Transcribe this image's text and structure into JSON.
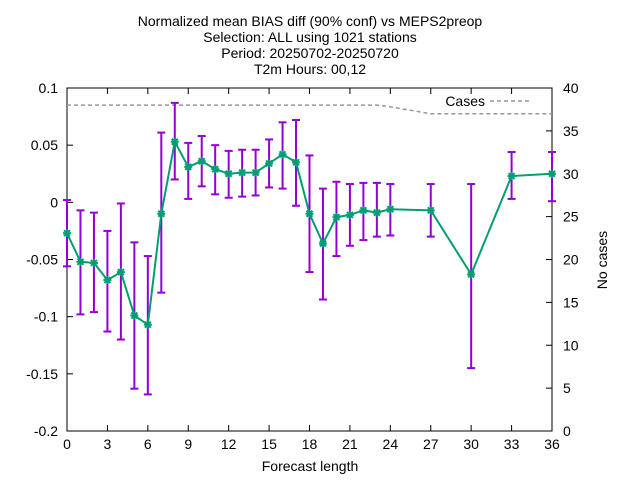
{
  "chart_data": {
    "type": "line",
    "title_lines": [
      "Normalized mean BIAS diff (90% conf) vs MEPS2preop",
      "Selection: ALL using  1021 stations",
      "Period: 20250702-20250720",
      "T2m   Hours: 00,12"
    ],
    "xlabel": "Forecast length",
    "ylabel": "",
    "y2label": "No cases",
    "xlim": [
      0,
      36
    ],
    "ylim": [
      -0.2,
      0.1
    ],
    "y2lim": [
      0,
      40
    ],
    "x_ticks": [
      0,
      3,
      6,
      9,
      12,
      15,
      18,
      21,
      24,
      27,
      30,
      33,
      36
    ],
    "y_ticks": [
      -0.2,
      -0.15,
      -0.1,
      -0.05,
      0,
      0.05,
      0.1
    ],
    "y_tick_labels": [
      "-0.2",
      "-0.15",
      "-0.1",
      "-0.05",
      "0",
      "0.05",
      "0.1"
    ],
    "y2_ticks": [
      0,
      5,
      10,
      15,
      20,
      25,
      30,
      35,
      40
    ],
    "legend_position": "top-right",
    "series": [
      {
        "kind": "bias",
        "color": "#009e73",
        "error_color": "#9400d3",
        "x": [
          0,
          1,
          2,
          3,
          4,
          5,
          6,
          7,
          8,
          9,
          10,
          11,
          12,
          13,
          14,
          15,
          16,
          17,
          18,
          19,
          20,
          21,
          22,
          23,
          24,
          27,
          30,
          33,
          36
        ],
        "y": [
          -0.027,
          -0.052,
          -0.053,
          -0.068,
          -0.061,
          -0.099,
          -0.107,
          -0.01,
          0.053,
          0.031,
          0.036,
          0.029,
          0.025,
          0.026,
          0.026,
          0.034,
          0.042,
          0.035,
          -0.01,
          -0.036,
          -0.013,
          -0.011,
          -0.007,
          -0.009,
          -0.006,
          -0.007,
          -0.063,
          0.023,
          0.025
        ],
        "err_low": [
          -0.056,
          -0.098,
          -0.096,
          -0.113,
          -0.12,
          -0.163,
          -0.168,
          -0.079,
          0.02,
          0.003,
          0.014,
          0.007,
          0.004,
          0.005,
          0.006,
          0.013,
          0.012,
          -0.003,
          -0.061,
          -0.085,
          -0.047,
          -0.038,
          -0.033,
          -0.03,
          -0.029,
          -0.03,
          -0.145,
          0.003,
          0.001
        ],
        "err_high": [
          0.002,
          -0.007,
          -0.009,
          -0.025,
          -0.001,
          -0.035,
          -0.047,
          0.061,
          0.087,
          0.052,
          0.058,
          0.05,
          0.045,
          0.046,
          0.046,
          0.055,
          0.07,
          0.072,
          0.041,
          0.012,
          0.018,
          0.016,
          0.017,
          0.017,
          0.016,
          0.016,
          0.016,
          0.044,
          0.044
        ]
      },
      {
        "kind": "cases",
        "name": "Cases",
        "axis": "y2",
        "color": "#999999",
        "x": [
          0,
          3,
          6,
          9,
          12,
          15,
          18,
          21,
          23,
          24,
          27,
          30,
          33,
          36
        ],
        "y": [
          38,
          38,
          38,
          38,
          38,
          38,
          38,
          38,
          38,
          37.8,
          37,
          37,
          37,
          37
        ]
      }
    ]
  }
}
